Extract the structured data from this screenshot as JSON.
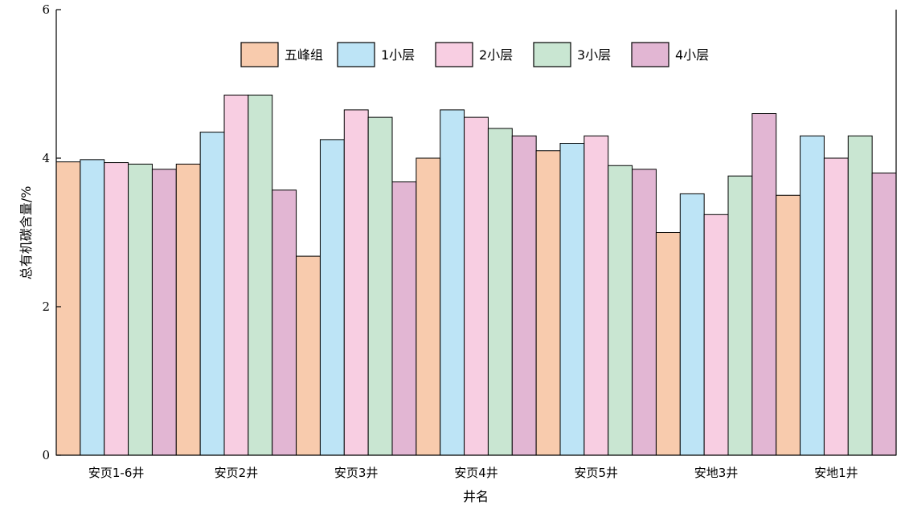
{
  "chart_data": {
    "type": "bar",
    "ylabel": "总有机碳含量/%",
    "xlabel": "井名",
    "ylim": [
      0,
      6
    ],
    "yticks": [
      0,
      2,
      4,
      6
    ],
    "legend_position": "top",
    "grid": false,
    "categories": [
      "安页1-6井",
      "安页2井",
      "安页3井",
      "安页4井",
      "安页5井",
      "安地3井",
      "安地1井"
    ],
    "series": [
      {
        "name": "五峰组",
        "color": "#f8cbad",
        "values": [
          3.95,
          3.92,
          2.68,
          4.0,
          4.1,
          3.0,
          3.5
        ]
      },
      {
        "name": "1小层",
        "color": "#bde4f6",
        "values": [
          3.98,
          4.35,
          4.25,
          4.65,
          4.2,
          3.52,
          4.3
        ]
      },
      {
        "name": "2小层",
        "color": "#f8cee2",
        "values": [
          3.94,
          4.85,
          4.65,
          4.55,
          4.3,
          3.24,
          4.0
        ]
      },
      {
        "name": "3小层",
        "color": "#c9e6d2",
        "values": [
          3.92,
          4.85,
          4.55,
          4.4,
          3.9,
          3.76,
          4.3
        ]
      },
      {
        "name": "4小层",
        "color": "#e2b6d3",
        "values": [
          3.85,
          3.57,
          3.68,
          4.3,
          3.85,
          4.6,
          3.8
        ]
      }
    ]
  }
}
